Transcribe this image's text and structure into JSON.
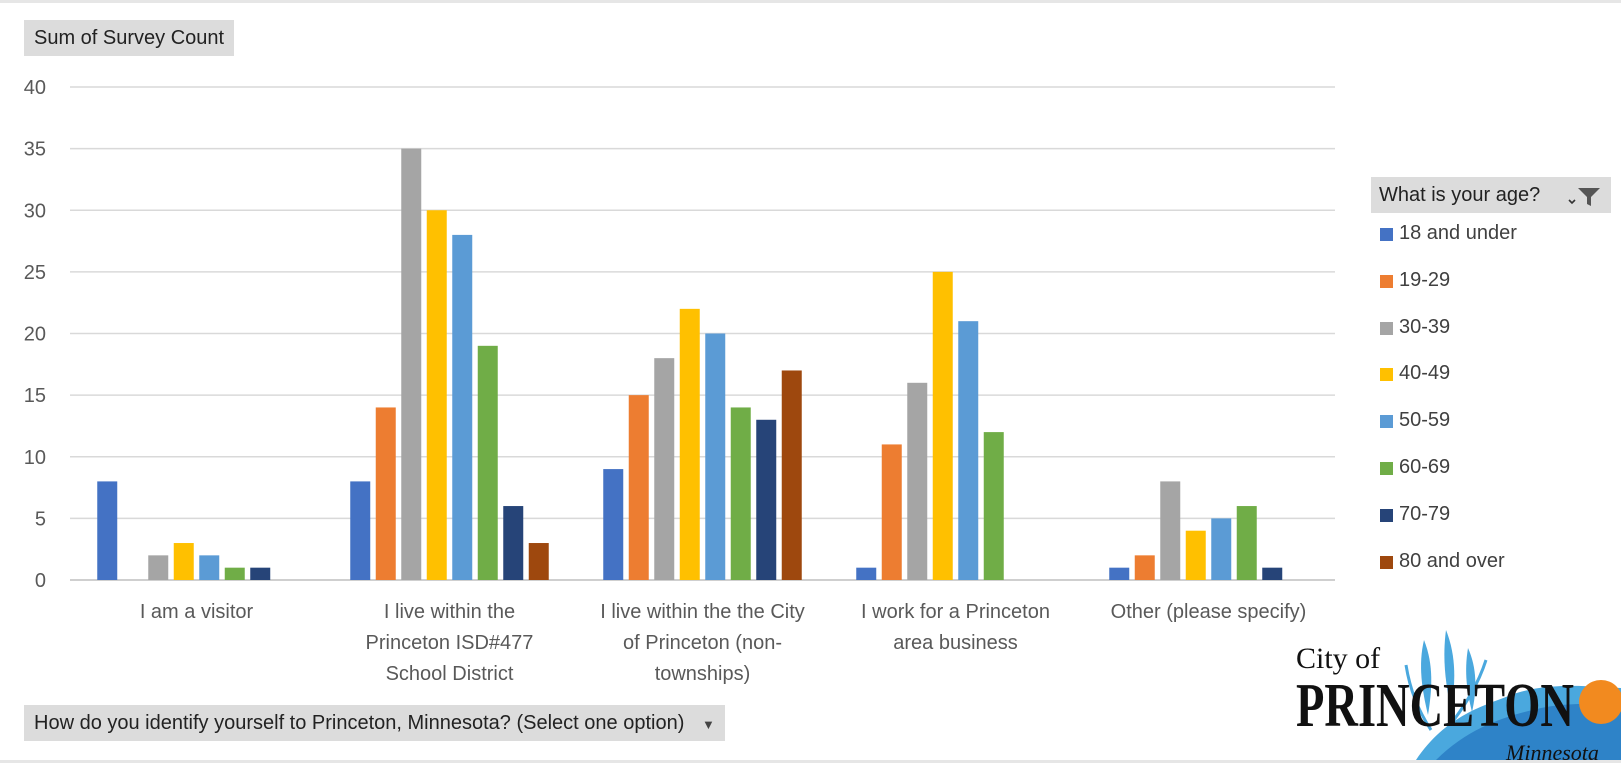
{
  "value_field": {
    "label": "Sum of Survey Count"
  },
  "legend_field": {
    "label": "What is your age?",
    "filter_icon": "filter-funnel-icon"
  },
  "axis_field": {
    "label": "How do you identify yourself to Princeton, Minnesota?  (Select one option)",
    "dropdown_icon": "dropdown-arrow-icon"
  },
  "logo": {
    "line1": "City of",
    "line2": "PRINCETON",
    "line3": "Minnesota"
  },
  "chart_data": {
    "type": "bar",
    "categories": [
      [
        "I am a visitor"
      ],
      [
        "I live within the",
        "Princeton ISD#477",
        "School District"
      ],
      [
        "I live within the the City",
        "of Princeton (non-",
        "townships)"
      ],
      [
        "I work for a Princeton",
        "area business"
      ],
      [
        "Other (please specify)"
      ]
    ],
    "series": [
      {
        "name": "18 and under",
        "color": "#4472c4",
        "values": [
          8,
          8,
          9,
          1,
          1
        ]
      },
      {
        "name": "19-29",
        "color": "#ed7d31",
        "values": [
          null,
          14,
          15,
          11,
          2
        ]
      },
      {
        "name": "30-39",
        "color": "#a5a5a5",
        "values": [
          2,
          35,
          18,
          16,
          8
        ]
      },
      {
        "name": "40-49",
        "color": "#ffc000",
        "values": [
          3,
          30,
          22,
          25,
          4
        ]
      },
      {
        "name": "50-59",
        "color": "#5b9bd5",
        "values": [
          2,
          28,
          20,
          21,
          5
        ]
      },
      {
        "name": "60-69",
        "color": "#70ad47",
        "values": [
          1,
          19,
          14,
          12,
          6
        ]
      },
      {
        "name": "70-79",
        "color": "#264478",
        "values": [
          1,
          6,
          13,
          null,
          1
        ]
      },
      {
        "name": "80 and over",
        "color": "#9e480e",
        "values": [
          null,
          3,
          17,
          null,
          null
        ]
      }
    ],
    "ylim": [
      0,
      40
    ],
    "yticks": [
      0,
      5,
      10,
      15,
      20,
      25,
      30,
      35,
      40
    ],
    "grid": true,
    "legend_position": "right"
  }
}
